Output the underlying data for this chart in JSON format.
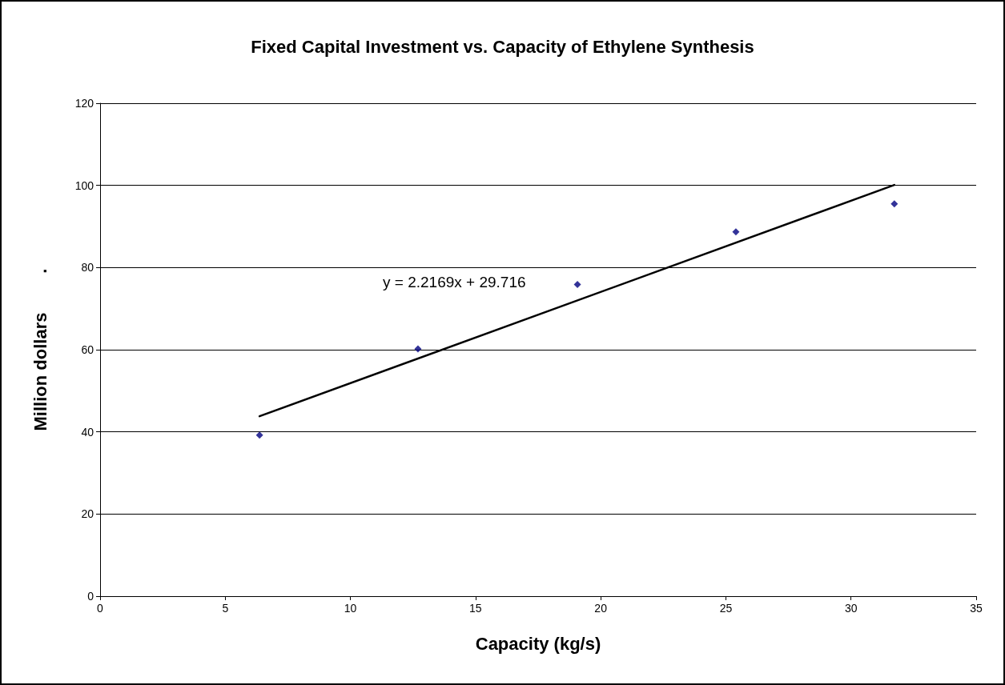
{
  "chart_data": {
    "type": "scatter",
    "title": "Fixed Capital Investment vs. Capacity of Ethylene Synthesis",
    "xlabel": "Capacity (kg/s)",
    "ylabel": "Million dollars        .",
    "series": [
      {
        "color": "#000080",
        "marker": "diamond",
        "x": [
          6.37,
          12.7,
          19.07,
          25.4,
          31.73
        ],
        "values": [
          39.2,
          60.2,
          75.9,
          88.7,
          95.5
        ]
      },
      {
        "type": "line",
        "color": "#000000",
        "marker": "none",
        "line_style": "solid",
        "x": [
          6.37,
          31.73
        ],
        "values": [
          43.8,
          100.1
        ]
      }
    ],
    "annotations": [
      "y = 2.2169x + 29.716"
    ],
    "xlim": [
      0,
      35
    ],
    "xticks": [
      0,
      5,
      10,
      15,
      20,
      25,
      30,
      35
    ],
    "ylim": [
      0,
      120
    ],
    "yticks": [
      0,
      20,
      40,
      60,
      80,
      100,
      120
    ],
    "grid": "y"
  }
}
